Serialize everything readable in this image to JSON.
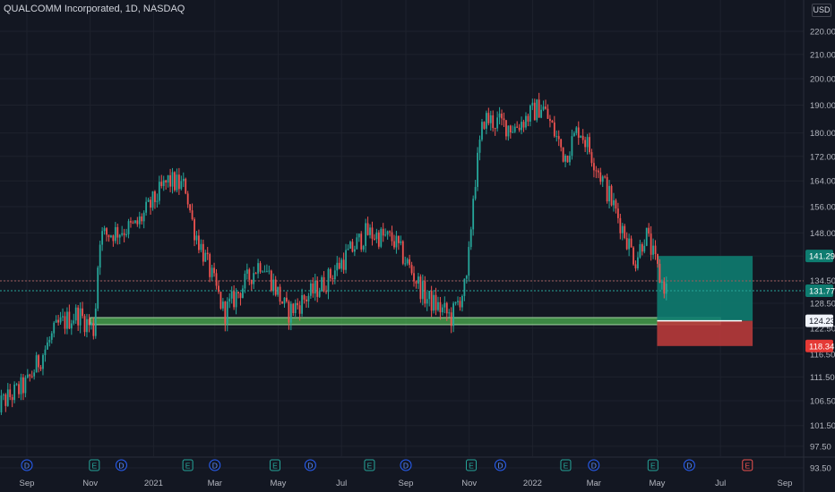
{
  "header": {
    "title": "QUALCOMM Incorporated, 1D, NASDAQ",
    "currency": "USD"
  },
  "colors": {
    "background": "#131722",
    "grid": "#1e222d",
    "text": "#b2b5be",
    "up": "#26a69a",
    "down": "#ef5350",
    "support_zone": "#4caf50",
    "profit_zone": "#0e7c70",
    "loss_zone": "#b83a3a"
  },
  "chart_data": {
    "type": "candlestick",
    "symbol": "QUALCOMM Incorporated",
    "interval": "1D",
    "exchange": "NASDAQ",
    "y_axis": {
      "ticks": [
        "93.50",
        "97.50",
        "101.50",
        "106.50",
        "111.50",
        "116.50",
        "122.50",
        "128.50",
        "134.50",
        "141.29",
        "148.00",
        "156.00",
        "164.00",
        "172.00",
        "180.00",
        "190.00",
        "200.00",
        "210.00",
        "220.00"
      ],
      "ylim": [
        93.5,
        226
      ],
      "scale": "log"
    },
    "x_axis": {
      "ticks": [
        "Sep",
        "Nov",
        "2021",
        "Mar",
        "May",
        "Jul",
        "Sep",
        "Nov",
        "2022",
        "Mar",
        "May",
        "Jul",
        "Sep"
      ]
    },
    "price_labels": [
      {
        "value": "141.29",
        "kind": "target"
      },
      {
        "value": "131.77",
        "kind": "last"
      },
      {
        "value": "124.23",
        "kind": "entry"
      },
      {
        "value": "118.34",
        "kind": "stop"
      }
    ],
    "support_zone": {
      "low": 123.3,
      "high": 125.0,
      "from": "2020-11",
      "to": "2022-07"
    },
    "position": {
      "entry": 124.23,
      "target": 141.29,
      "stop": 118.34,
      "from": "2022-05",
      "to": "2022-08"
    },
    "dashed_levels": [
      134.4,
      131.77
    ],
    "price_path": [
      {
        "date": "2020-08",
        "close": 105
      },
      {
        "date": "2020-09",
        "close": 110
      },
      {
        "date": "2020-10",
        "close": 123
      },
      {
        "date": "2020-10-20",
        "close": 126
      },
      {
        "date": "2020-11-05",
        "close": 122
      },
      {
        "date": "2020-11-10",
        "close": 147
      },
      {
        "date": "2020-12-15",
        "close": 150
      },
      {
        "date": "2021-01-15",
        "close": 164
      },
      {
        "date": "2021-02-01",
        "close": 162
      },
      {
        "date": "2021-02-08",
        "close": 150
      },
      {
        "date": "2021-03-10",
        "close": 126
      },
      {
        "date": "2021-04-15",
        "close": 140
      },
      {
        "date": "2021-05-10",
        "close": 126
      },
      {
        "date": "2021-06-15",
        "close": 134
      },
      {
        "date": "2021-07-25",
        "close": 148
      },
      {
        "date": "2021-08-20",
        "close": 146
      },
      {
        "date": "2021-09-20",
        "close": 130
      },
      {
        "date": "2021-10-15",
        "close": 125
      },
      {
        "date": "2021-10-30",
        "close": 134
      },
      {
        "date": "2021-11-05",
        "close": 160
      },
      {
        "date": "2021-11-15",
        "close": 185
      },
      {
        "date": "2021-12-15",
        "close": 182
      },
      {
        "date": "2022-01-10",
        "close": 190
      },
      {
        "date": "2022-02-01",
        "close": 172
      },
      {
        "date": "2022-02-15",
        "close": 182
      },
      {
        "date": "2022-03-15",
        "close": 160
      },
      {
        "date": "2022-04-10",
        "close": 140
      },
      {
        "date": "2022-04-20",
        "close": 148
      },
      {
        "date": "2022-05-05",
        "close": 134
      },
      {
        "date": "2022-05-12",
        "close": 131.77
      }
    ],
    "event_markers": [
      {
        "type": "D",
        "date": "2020-09-01"
      },
      {
        "type": "E",
        "date": "2020-11-05"
      },
      {
        "type": "D",
        "date": "2020-12-01"
      },
      {
        "type": "E",
        "date": "2021-02-03"
      },
      {
        "type": "D",
        "date": "2021-03-01"
      },
      {
        "type": "E",
        "date": "2021-04-28"
      },
      {
        "type": "D",
        "date": "2021-06-01"
      },
      {
        "type": "E",
        "date": "2021-07-28"
      },
      {
        "type": "D",
        "date": "2021-09-01"
      },
      {
        "type": "E",
        "date": "2021-11-03"
      },
      {
        "type": "D",
        "date": "2021-12-01"
      },
      {
        "type": "E",
        "date": "2022-02-02"
      },
      {
        "type": "D",
        "date": "2022-03-01"
      },
      {
        "type": "E",
        "date": "2022-04-27"
      },
      {
        "type": "D",
        "date": "2022-06-01"
      },
      {
        "type": "E",
        "date": "2022-07-27",
        "future": true
      }
    ]
  }
}
